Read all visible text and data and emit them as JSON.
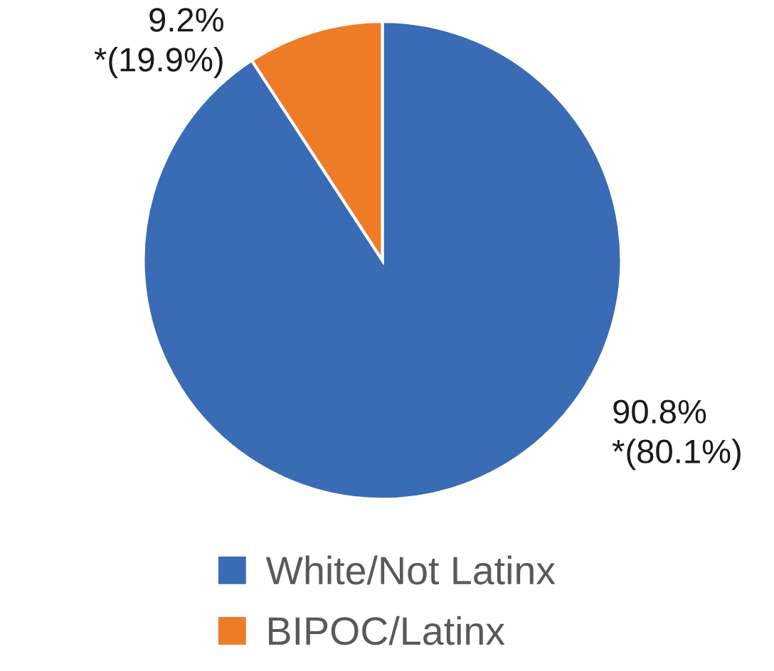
{
  "chart_data": {
    "type": "pie",
    "categories": [
      "White/Not Latinx",
      "BIPOC/Latinx"
    ],
    "values": [
      90.8,
      9.2
    ],
    "colors": [
      "#3a6bb5",
      "#ee7c27"
    ],
    "value_labels": [
      "90.8%\n*(80.1%)",
      "9.2%\n*(19.9%)"
    ],
    "legend": "bottom"
  }
}
